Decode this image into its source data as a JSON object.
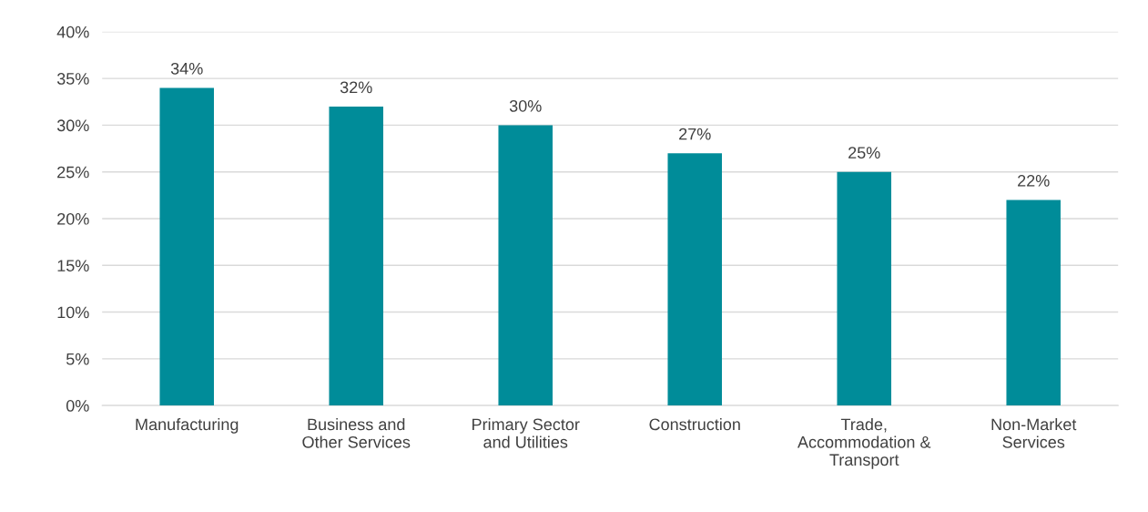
{
  "chart_data": {
    "type": "bar",
    "categories": [
      "Manufacturing",
      "Business and\nOther Services",
      "Primary Sector\nand Utilities",
      "Construction",
      "Trade,\nAccommodation &\nTransport",
      "Non-Market\nServices"
    ],
    "values": [
      34,
      32,
      30,
      27,
      25,
      22
    ],
    "value_labels": [
      "34%",
      "32%",
      "30%",
      "27%",
      "25%",
      "22%"
    ],
    "color": "#008c99",
    "ylim": [
      0,
      40
    ],
    "yticks": [
      {
        "value": 0,
        "label": "0%"
      },
      {
        "value": 5,
        "label": "5%"
      },
      {
        "value": 10,
        "label": "10%"
      },
      {
        "value": 15,
        "label": "15%"
      },
      {
        "value": 20,
        "label": "20%"
      },
      {
        "value": 25,
        "label": "25%"
      },
      {
        "value": 30,
        "label": "30%"
      },
      {
        "value": 35,
        "label": "35%"
      },
      {
        "value": 40,
        "label": "40%"
      }
    ],
    "grid": "y"
  }
}
